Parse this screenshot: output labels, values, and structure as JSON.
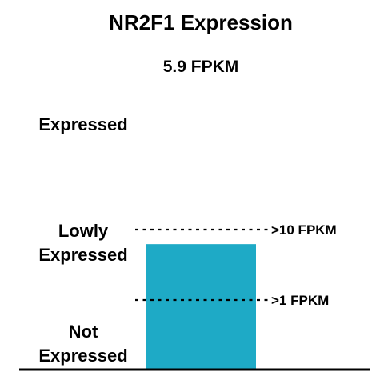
{
  "chart_data": {
    "type": "bar",
    "title": "NR2F1 Expression",
    "subtitle": "5.9 FPKM",
    "categories": [
      "NR2F1"
    ],
    "values": [
      5.9
    ],
    "unit": "FPKM",
    "scale": "log",
    "ylim": [
      0.1,
      100
    ],
    "grid": false,
    "bar_color": "#1EAAC6",
    "thresholds": [
      {
        "value": 10,
        "label": ">10 FPKM"
      },
      {
        "value": 1,
        "label": ">1 FPKM"
      }
    ],
    "levels": [
      {
        "lines": [
          "Expressed"
        ]
      },
      {
        "lines": [
          "Lowly",
          "Expressed"
        ]
      },
      {
        "lines": [
          "Not",
          "Expressed"
        ]
      }
    ]
  }
}
